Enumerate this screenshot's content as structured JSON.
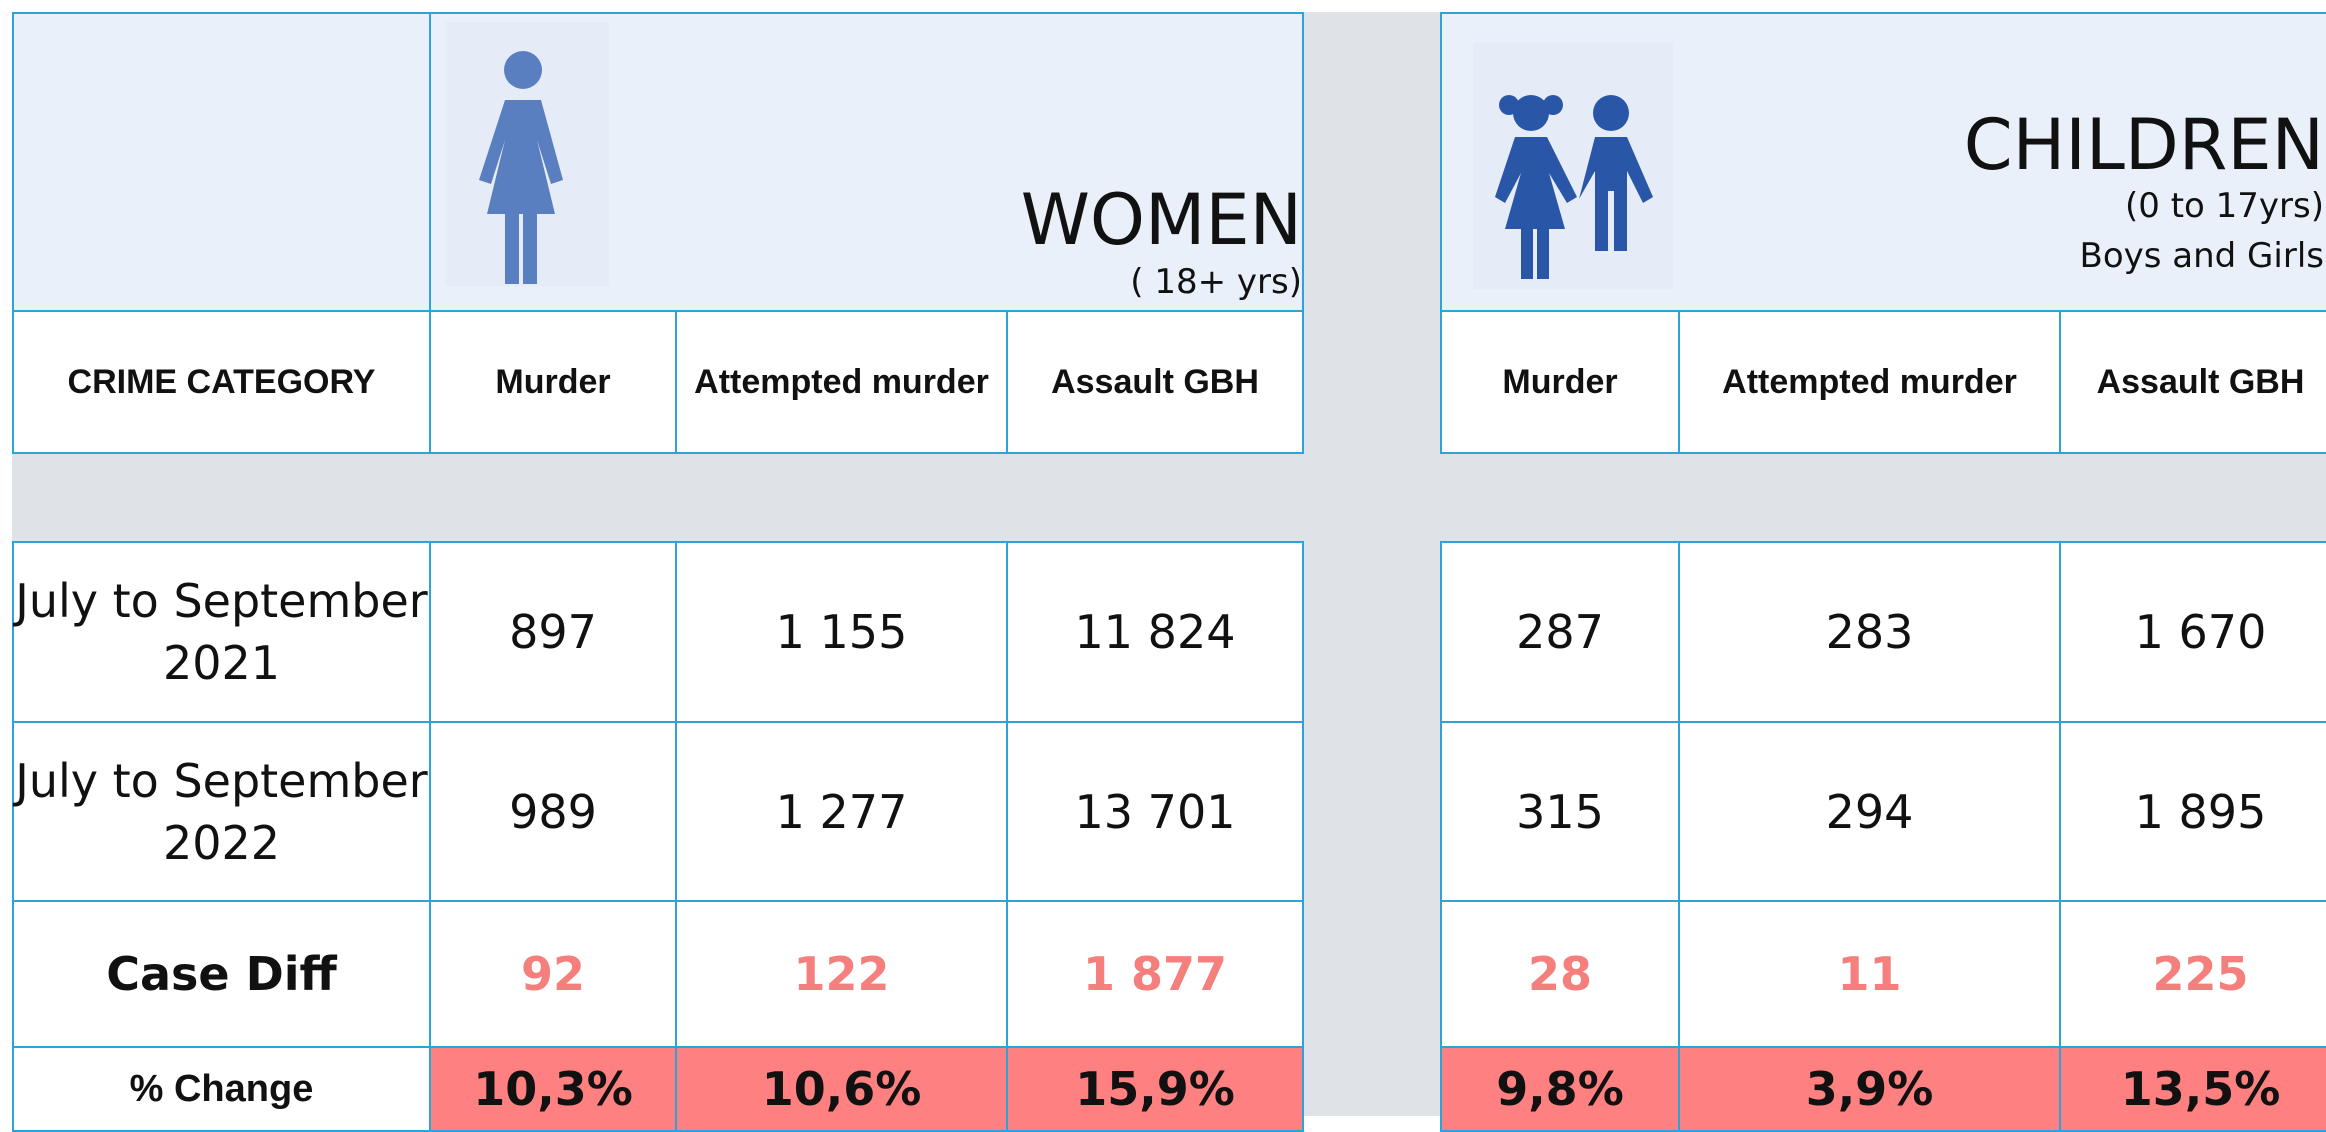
{
  "women": {
    "title": "WOMEN",
    "subtitle": "( 18+ yrs)"
  },
  "children": {
    "title": "CHILDREN",
    "subtitle": "(0 to 17yrs)",
    "subtitle2": "Boys and Girls"
  },
  "table": {
    "header": "CRIME CATEGORY",
    "columns": [
      "Murder",
      "Attempted murder",
      "Assault GBH",
      "Murder",
      "Attempted murder",
      "Assault GBH"
    ],
    "rows": [
      {
        "label": "July to September 2021",
        "values": [
          "897",
          "1 155",
          "11 824",
          "287",
          "283",
          "1 670"
        ]
      },
      {
        "label": "July to September 2022",
        "values": [
          "989",
          "1 277",
          "13 701",
          "315",
          "294",
          "1 895"
        ]
      },
      {
        "label": "Case Diff",
        "values": [
          "92",
          "122",
          "1 877",
          "28",
          "11",
          "225"
        ]
      },
      {
        "label": "% Change",
        "values": [
          "10,3%",
          "10,6%",
          "15,9%",
          "9,8%",
          "3,9%",
          "13,5%"
        ]
      }
    ]
  }
}
